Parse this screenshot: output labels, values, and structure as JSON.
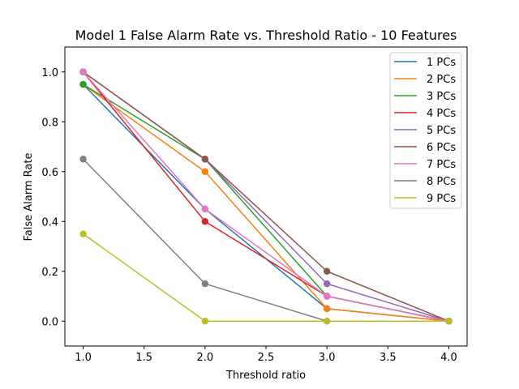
{
  "chart_data": {
    "type": "line",
    "title": "Model 1 False Alarm Rate vs. Threshold Ratio - 10 Features",
    "xlabel": "Threshold ratio",
    "ylabel": "False Alarm Rate",
    "xlim": [
      0.85,
      4.15
    ],
    "ylim": [
      -0.1,
      1.1
    ],
    "xticks": [
      1.0,
      1.5,
      2.0,
      2.5,
      3.0,
      3.5,
      4.0
    ],
    "xtick_labels": [
      "1.0",
      "1.5",
      "2.0",
      "2.5",
      "3.0",
      "3.5",
      "4.0"
    ],
    "yticks": [
      0.0,
      0.2,
      0.4,
      0.6,
      0.8,
      1.0
    ],
    "ytick_labels": [
      "0.0",
      "0.2",
      "0.4",
      "0.6",
      "0.8",
      "1.0"
    ],
    "grid": false,
    "legend_position": "top-right",
    "x": [
      1.0,
      2.0,
      3.0,
      4.0
    ],
    "series": [
      {
        "name": "1 PCs",
        "color": "#1f77b4",
        "values": [
          0.95,
          0.45,
          0.05,
          0.0
        ]
      },
      {
        "name": "2 PCs",
        "color": "#ff7f0e",
        "values": [
          0.95,
          0.6,
          0.05,
          0.0
        ]
      },
      {
        "name": "3 PCs",
        "color": "#2ca02c",
        "values": [
          0.95,
          0.65,
          0.1,
          0.0
        ]
      },
      {
        "name": "4 PCs",
        "color": "#d62728",
        "values": [
          1.0,
          0.4,
          0.1,
          0.0
        ]
      },
      {
        "name": "5 PCs",
        "color": "#9467bd",
        "values": [
          1.0,
          0.65,
          0.15,
          0.0
        ]
      },
      {
        "name": "6 PCs",
        "color": "#8c564b",
        "values": [
          1.0,
          0.65,
          0.2,
          0.0
        ]
      },
      {
        "name": "7 PCs",
        "color": "#e377c2",
        "values": [
          1.0,
          0.45,
          0.1,
          0.0
        ]
      },
      {
        "name": "8 PCs",
        "color": "#7f7f7f",
        "values": [
          0.65,
          0.15,
          0.0,
          0.0
        ]
      },
      {
        "name": "9 PCs",
        "color": "#bcbd22",
        "values": [
          0.35,
          0.0,
          0.0,
          0.0
        ]
      }
    ]
  }
}
